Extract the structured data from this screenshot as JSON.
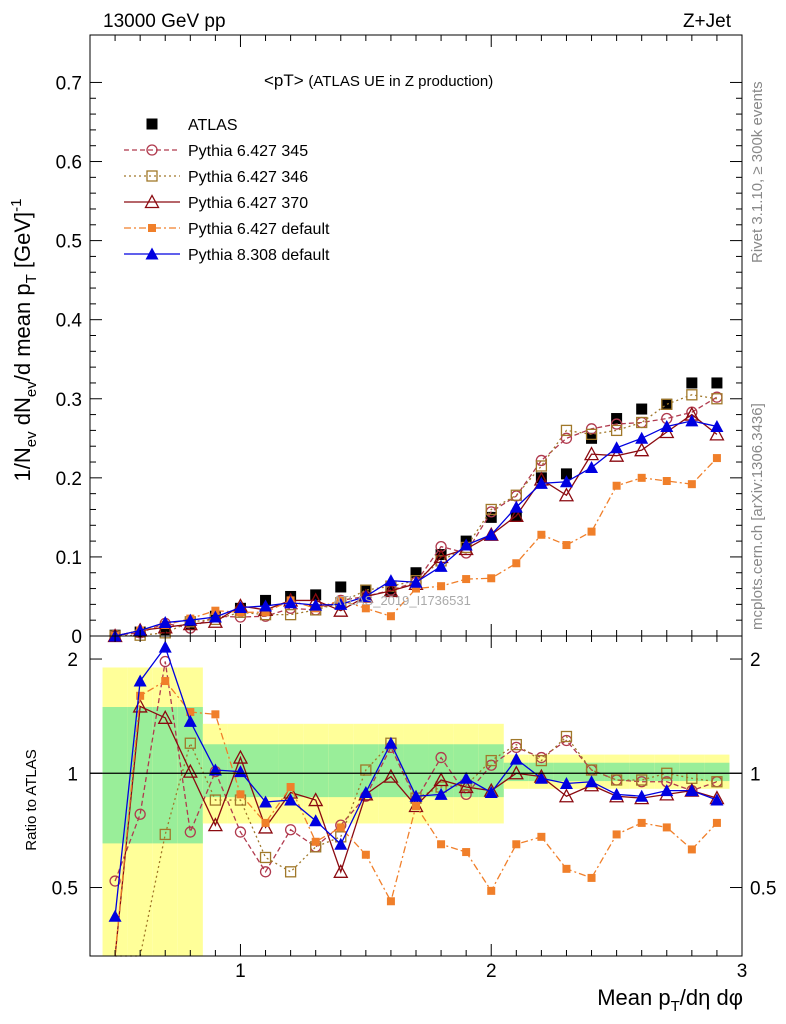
{
  "header": {
    "left": "13000 GeV pp",
    "right": "Z+Jet"
  },
  "side_text": {
    "upper": "Rivet 3.1.10, ≥ 300k events",
    "lower": "mcplots.cern.ch [arXiv:1306.3436]"
  },
  "watermark": "ATLAS_2019_I1736531",
  "chart_data": {
    "type": "scatter",
    "title": "<pT> (ATLAS UE in Z production)",
    "xlabel": "Mean p_T/dη dφ",
    "ylabel": "1/N_ev dN_ev/d mean p_T [GeV]^-1",
    "xlim": [
      0.4,
      3.0
    ],
    "ylim": [
      0,
      0.76
    ],
    "x_ticks": [
      1,
      2,
      3
    ],
    "y_ticks": [
      0,
      0.1,
      0.2,
      0.3,
      0.4,
      0.5,
      0.6,
      0.7
    ],
    "y_tick_labels": [
      "0",
      "0.1",
      "0.2",
      "0.3",
      "0.4",
      "0.5",
      "0.6",
      "0.7"
    ],
    "legend_position": "top-left",
    "x": [
      0.5,
      0.6,
      0.7,
      0.8,
      0.9,
      1.0,
      1.1,
      1.2,
      1.3,
      1.4,
      1.5,
      1.6,
      1.7,
      1.8,
      1.9,
      2.0,
      2.1,
      2.2,
      2.3,
      2.4,
      2.5,
      2.6,
      2.7,
      2.8,
      2.9
    ],
    "series": [
      {
        "name": "ATLAS",
        "color": "#000000",
        "marker": "square-filled",
        "line": "none",
        "values": [
          0.001,
          0.005,
          0.008,
          0.015,
          0.025,
          0.035,
          0.045,
          0.05,
          0.052,
          0.062,
          0.058,
          0.058,
          0.08,
          0.103,
          0.12,
          0.15,
          0.152,
          0.2,
          0.205,
          0.25,
          0.275,
          0.287,
          0.293,
          0.32,
          0.32
        ]
      },
      {
        "name": "Pythia 6.427 345",
        "color": "#b03a4e",
        "marker": "circle-open",
        "line": "dashed",
        "values": [
          0.001,
          0.004,
          0.016,
          0.01,
          0.025,
          0.024,
          0.025,
          0.035,
          0.033,
          0.045,
          0.05,
          0.058,
          0.068,
          0.113,
          0.105,
          0.157,
          0.177,
          0.222,
          0.25,
          0.262,
          0.268,
          0.27,
          0.275,
          0.283,
          0.302
        ]
      },
      {
        "name": "Pythia 6.427 346",
        "color": "#a0782a",
        "marker": "square-open",
        "line": "dotted",
        "values": [
          0.0,
          0.001,
          0.004,
          0.018,
          0.021,
          0.03,
          0.027,
          0.027,
          0.033,
          0.042,
          0.058,
          0.063,
          0.07,
          0.095,
          0.112,
          0.16,
          0.178,
          0.215,
          0.26,
          0.255,
          0.26,
          0.27,
          0.293,
          0.305,
          0.3
        ]
      },
      {
        "name": "Pythia 6.427 370",
        "color": "#8b0a10",
        "marker": "triangle-open",
        "line": "solid",
        "values": [
          0.0,
          0.007,
          0.011,
          0.015,
          0.018,
          0.038,
          0.033,
          0.045,
          0.045,
          0.032,
          0.05,
          0.057,
          0.066,
          0.1,
          0.11,
          0.128,
          0.152,
          0.198,
          0.178,
          0.23,
          0.228,
          0.235,
          0.258,
          0.28,
          0.255
        ]
      },
      {
        "name": "Pythia 6.427 default",
        "color": "#f07f2a",
        "marker": "square-filled-small",
        "line": "dashdot",
        "values": [
          0.0,
          0.007,
          0.014,
          0.022,
          0.032,
          0.03,
          0.03,
          0.045,
          0.035,
          0.045,
          0.035,
          0.025,
          0.06,
          0.063,
          0.072,
          0.073,
          0.092,
          0.128,
          0.115,
          0.132,
          0.19,
          0.2,
          0.196,
          0.192,
          0.225
        ]
      },
      {
        "name": "Pythia 8.308 default",
        "color": "#0000e0",
        "marker": "triangle-filled",
        "line": "solid",
        "values": [
          0.0,
          0.007,
          0.017,
          0.02,
          0.024,
          0.036,
          0.038,
          0.042,
          0.039,
          0.04,
          0.05,
          0.07,
          0.068,
          0.088,
          0.115,
          0.128,
          0.163,
          0.193,
          0.195,
          0.213,
          0.238,
          0.25,
          0.265,
          0.272,
          0.265
        ]
      }
    ],
    "ratio": {
      "ylabel": "Ratio to ATLAS",
      "ylim": [
        0.33,
        2.3
      ],
      "y_tick_labels": [
        "0.5",
        "1",
        "2"
      ],
      "y_ticks": [
        0.5,
        1,
        2
      ],
      "reference": 1,
      "series": [
        {
          "name": "Pythia 6.427 345",
          "values": [
            0.52,
            0.78,
            1.97,
            0.7,
            1.01,
            0.7,
            0.55,
            0.71,
            0.64,
            0.73,
            0.87,
            1.17,
            0.85,
            1.1,
            0.88,
            1.05,
            1.17,
            1.1,
            1.22,
            1.02,
            0.96,
            0.95,
            0.95,
            0.9,
            0.95
          ]
        },
        {
          "name": "Pythia 6.427 346",
          "values": [
            0.25,
            0.25,
            0.69,
            1.2,
            0.85,
            0.85,
            0.6,
            0.55,
            0.64,
            0.68,
            1.02,
            1.2,
            0.86,
            0.92,
            0.93,
            1.08,
            1.19,
            1.08,
            1.25,
            1.02,
            0.96,
            0.96,
            1.0,
            0.97,
            0.95
          ]
        },
        {
          "name": "Pythia 6.427 370",
          "values": [
            0.25,
            1.5,
            1.4,
            1.01,
            0.73,
            1.1,
            0.72,
            0.89,
            0.85,
            0.55,
            0.88,
            0.98,
            0.82,
            0.96,
            0.92,
            0.9,
            1.0,
            0.98,
            0.87,
            0.93,
            0.87,
            0.86,
            0.88,
            0.9,
            0.86
          ]
        },
        {
          "name": "Pythia 6.427 default",
          "values": [
            0.25,
            1.6,
            1.75,
            1.45,
            1.43,
            0.88,
            0.74,
            0.92,
            0.66,
            0.72,
            0.61,
            0.46,
            0.82,
            0.65,
            0.62,
            0.49,
            0.65,
            0.68,
            0.56,
            0.53,
            0.69,
            0.74,
            0.72,
            0.63,
            0.74
          ]
        },
        {
          "name": "Pythia 8.308 default",
          "values": [
            0.42,
            1.75,
            2.15,
            1.37,
            1.02,
            1.01,
            0.84,
            0.85,
            0.75,
            0.65,
            0.89,
            1.2,
            0.87,
            0.88,
            0.97,
            0.89,
            1.09,
            0.97,
            0.94,
            0.95,
            0.88,
            0.87,
            0.9,
            0.9,
            0.85
          ]
        }
      ]
    }
  }
}
